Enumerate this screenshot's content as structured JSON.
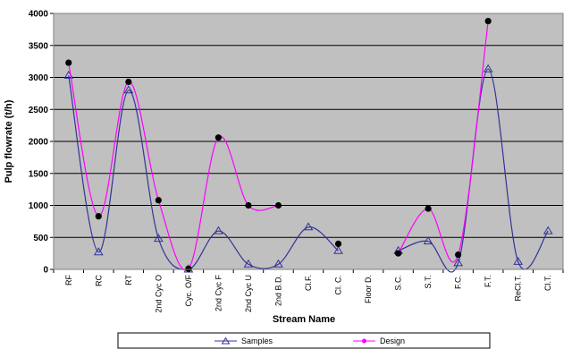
{
  "chart_data": {
    "type": "line",
    "title": "",
    "xlabel": "Stream Name",
    "ylabel": "Pulp flowrate (t/h)",
    "ylim": [
      0,
      4000
    ],
    "yticks": [
      "0",
      "500",
      "1000",
      "1500",
      "2000",
      "2500",
      "3000",
      "3500",
      "4000"
    ],
    "ytick_values": [
      0,
      500,
      1000,
      1500,
      2000,
      2500,
      3000,
      3500,
      4000
    ],
    "grid": true,
    "legend_position": "bottom",
    "plot_background": "#c0c0c0",
    "categories": [
      "RF",
      "RC",
      "RT",
      "2nd Cyc O",
      "Cyc. O/F",
      "2nd Cyc F",
      "2nd Cyc U",
      "2nd B.D.",
      "Cl.F.",
      "Cl. C.",
      "Floor D.",
      "S.C.",
      "S.T.",
      "F.C.",
      "F.T.",
      "ReCl.T.",
      "Cl.T."
    ],
    "series": [
      {
        "name": "Samples",
        "color": "#333399",
        "marker": "triangle",
        "values": [
          3030,
          270,
          2800,
          480,
          0,
          600,
          80,
          80,
          660,
          290,
          null,
          290,
          440,
          100,
          3130,
          120,
          600
        ]
      },
      {
        "name": "Design",
        "color": "#ff00ff",
        "marker": "circle",
        "values": [
          3230,
          830,
          2930,
          1080,
          10,
          2060,
          1000,
          1000,
          null,
          400,
          null,
          250,
          950,
          230,
          3880,
          null,
          null
        ]
      }
    ]
  }
}
